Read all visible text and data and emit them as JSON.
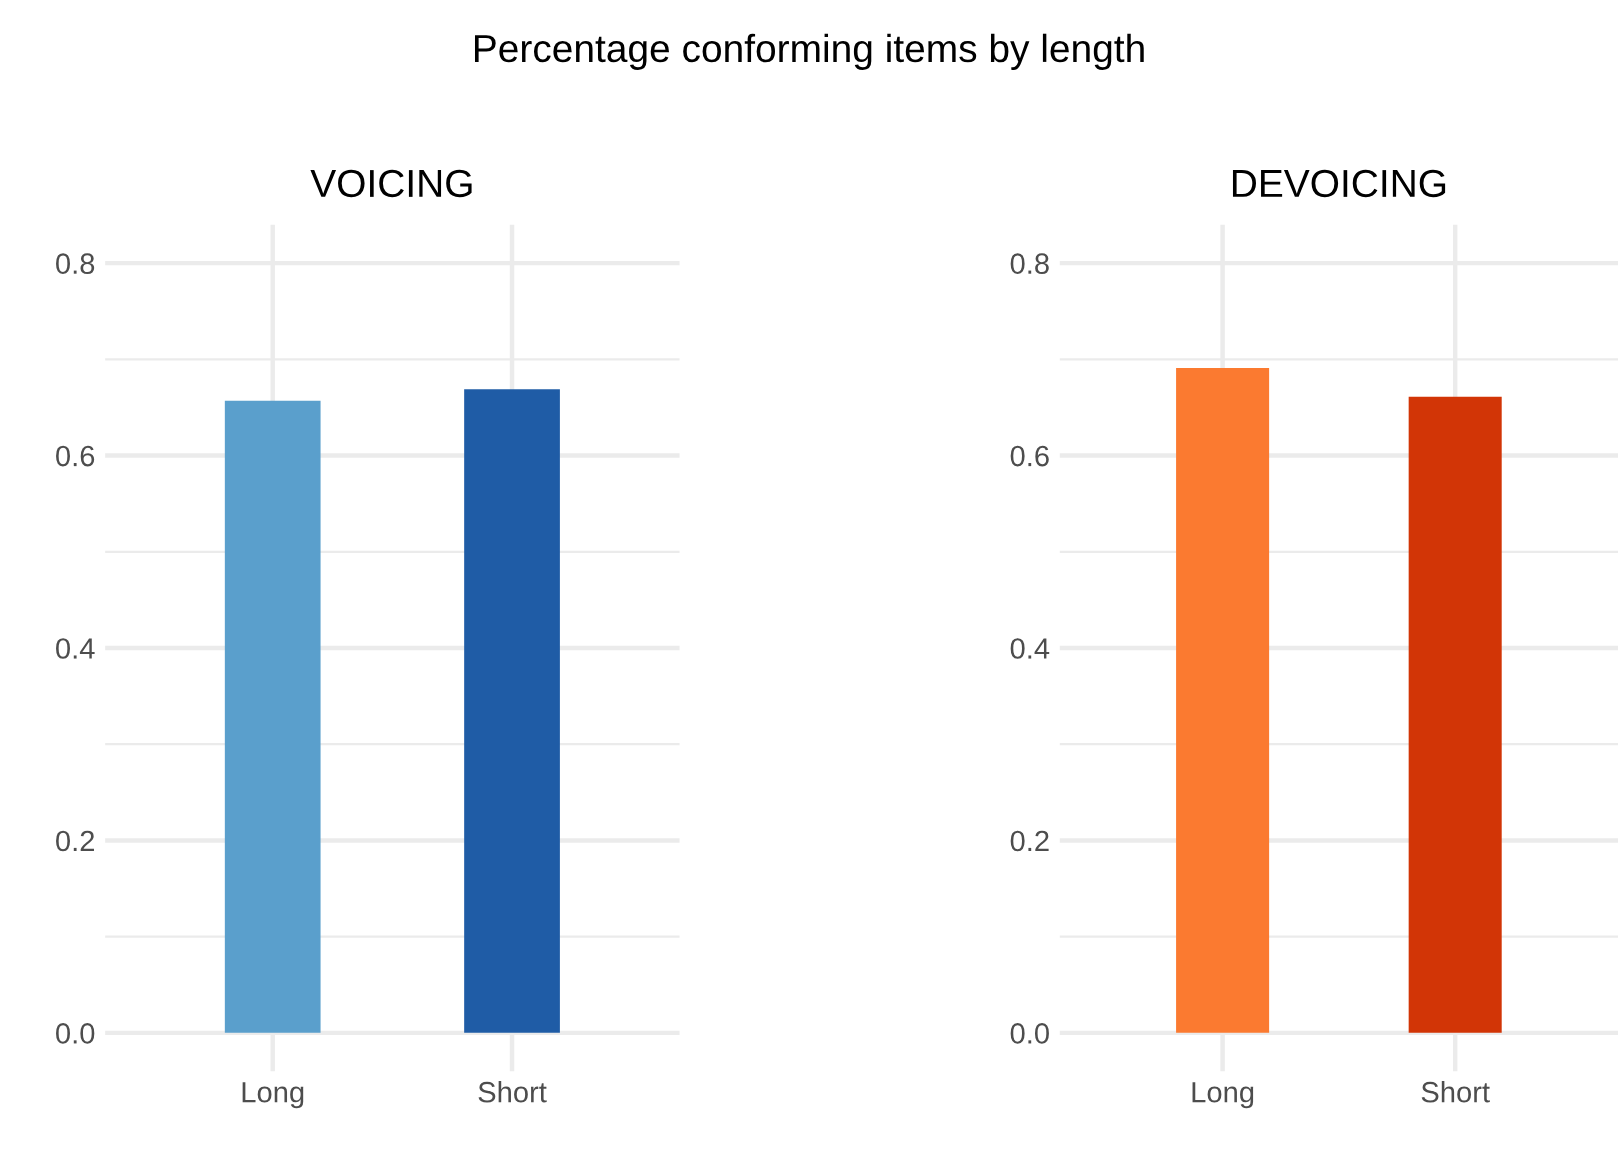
{
  "chart_data": [
    {
      "type": "bar",
      "title": "VOICING",
      "annotations": [
        "Percentage conforming items by length"
      ],
      "categories": [
        "Long",
        "Short"
      ],
      "values": [
        0.657,
        0.669
      ],
      "colors": [
        "#5a9fcc",
        "#1f5ca6"
      ],
      "ylim": [
        -0.04,
        0.84
      ],
      "yticks": [
        {
          "value": 0,
          "label": "0.0"
        },
        {
          "value": 0.1,
          "label": null
        },
        0.2,
        {
          "value": 0.3,
          "label": null
        },
        0.4,
        {
          "value": 0.5,
          "label": null
        },
        0.6,
        {
          "value": 0.7,
          "label": null
        },
        0.8
      ],
      "grid": true
    },
    {
      "type": "bar",
      "title": "DEVOICING",
      "categories": [
        "Long",
        "Short"
      ],
      "values": [
        0.691,
        0.661
      ],
      "colors": [
        "#fb7a30",
        "#d23506"
      ],
      "ylim": [
        -0.04,
        0.84
      ],
      "yticks": [
        {
          "value": 0,
          "label": "0.0"
        },
        {
          "value": 0.1,
          "label": null
        },
        0.2,
        {
          "value": 0.3,
          "label": null
        },
        0.4,
        {
          "value": 0.5,
          "label": null
        },
        0.6,
        {
          "value": 0.7,
          "label": null
        },
        0.8
      ],
      "grid": true
    }
  ]
}
